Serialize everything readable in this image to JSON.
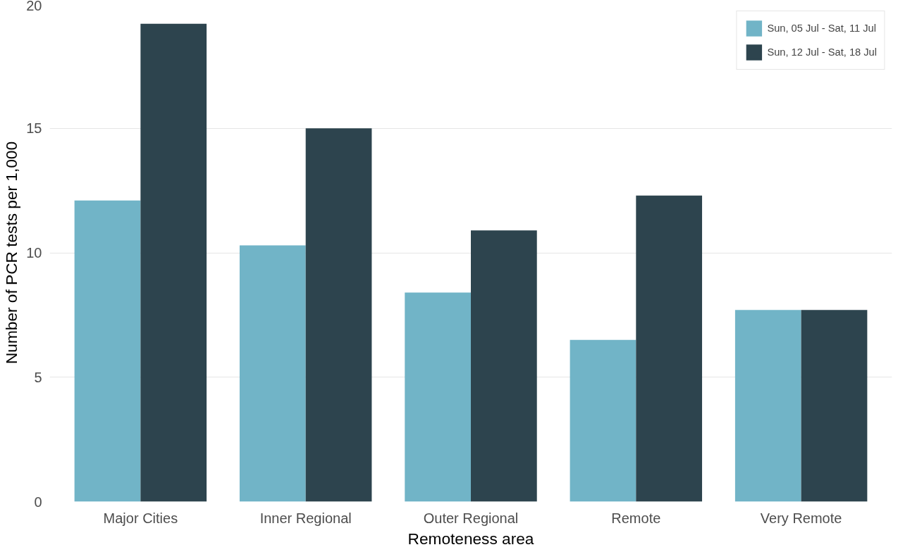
{
  "chart_data": {
    "type": "bar",
    "xlabel": "Remoteness area",
    "ylabel": "Number of PCR tests per 1,000",
    "categories": [
      "Major Cities",
      "Inner Regional",
      "Outer Regional",
      "Remote",
      "Very Remote"
    ],
    "series": [
      {
        "name": "Sun, 05 Jul - Sat, 11 Jul",
        "color": "#71b4c7",
        "values": [
          12.1,
          10.3,
          8.4,
          6.5,
          7.7
        ]
      },
      {
        "name": "Sun, 12 Jul - Sat, 18 Jul",
        "color": "#2d444e",
        "values": [
          19.2,
          15.0,
          10.9,
          12.3,
          7.7
        ]
      }
    ],
    "ylim": [
      0,
      20
    ],
    "yticks": [
      0,
      5,
      10,
      15,
      20
    ],
    "grid": "y",
    "legend": "top right"
  }
}
